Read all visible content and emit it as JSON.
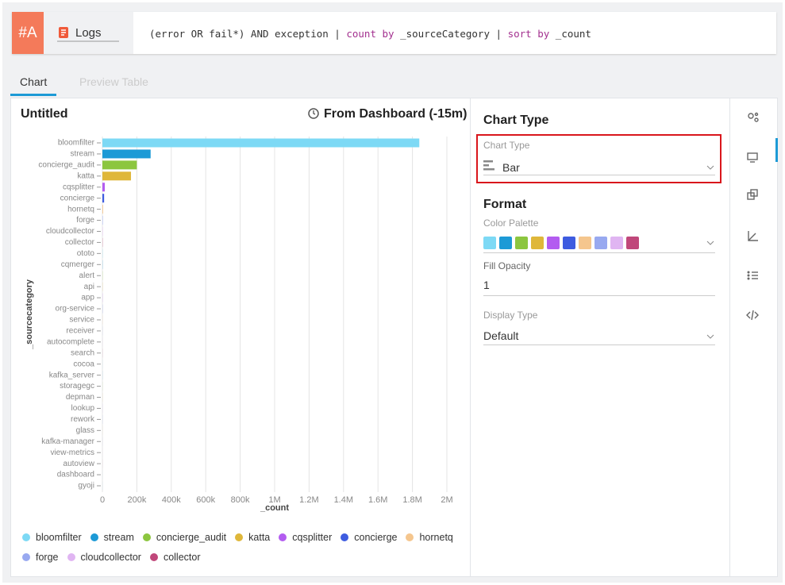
{
  "query_bar": {
    "badge": "#A",
    "source": "Logs",
    "query": [
      "(error OR fail*) AND exception | ",
      "count by",
      " _sourceCategory | ",
      "sort by",
      " _count"
    ]
  },
  "tabs": [
    "Chart",
    "Preview Table"
  ],
  "panel": {
    "title": "Untitled",
    "time_range": "From Dashboard (-15m)"
  },
  "settings": {
    "heading": "Chart Type",
    "chart_type_label": "Chart Type",
    "chart_type_value": "Bar",
    "format_heading": "Format",
    "palette_label": "Color Palette",
    "opacity_label": "Fill Opacity",
    "opacity_value": "1",
    "display_label": "Display Type",
    "display_value": "Default"
  },
  "chart_data": {
    "type": "bar",
    "orientation": "horizontal",
    "x_label": "_count",
    "y_label": "_sourcecategory",
    "categories": [
      "bloomfilter",
      "stream",
      "concierge_audit",
      "katta",
      "cqsplitter",
      "concierge",
      "hornetq",
      "forge",
      "cloudcollector",
      "collector",
      "ototo",
      "cqmerger",
      "alert",
      "api",
      "app",
      "org-service",
      "service",
      "receiver",
      "autocomplete",
      "search",
      "cocoa",
      "kafka_server",
      "storagegc",
      "depman",
      "lookup",
      "rework",
      "glass",
      "kafka-manager",
      "view-metrics",
      "autoview",
      "dashboard",
      "gyoji"
    ],
    "values": [
      1840000,
      280000,
      200000,
      166000,
      14000,
      10000,
      4000,
      2000,
      1500,
      1000,
      900,
      800,
      700,
      650,
      600,
      550,
      500,
      450,
      400,
      380,
      360,
      340,
      320,
      300,
      280,
      260,
      240,
      220,
      200,
      180,
      160,
      140
    ],
    "colors": [
      "#7dd9f5",
      "#1d9ad6",
      "#8cc63f",
      "#dfb73a",
      "#b35cf0",
      "#3e5ce0",
      "#f5c68e",
      "#98a9f0",
      "#e0b5f2",
      "#c0477a"
    ],
    "legend_count": 10,
    "xlim": [
      0,
      2000000
    ],
    "xticks": [
      0,
      {
        "value": 200000,
        "label": "200k"
      },
      {
        "value": 400000,
        "label": "400k"
      },
      {
        "value": 600000,
        "label": "600k"
      },
      {
        "value": 800000,
        "label": "800k"
      },
      {
        "value": 1000000,
        "label": "1M"
      },
      {
        "value": 1200000,
        "label": "1.2M"
      },
      {
        "value": 1400000,
        "label": "1.4M"
      },
      {
        "value": 1600000,
        "label": "1.6M"
      },
      {
        "value": 1800000,
        "label": "1.8M"
      },
      {
        "value": 2000000,
        "label": "2M"
      }
    ],
    "grid": true
  }
}
